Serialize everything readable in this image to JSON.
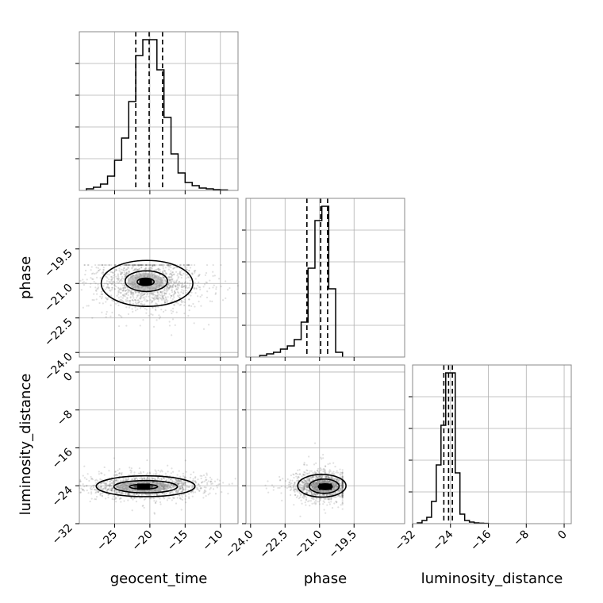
{
  "chart_data": {
    "type": "corner",
    "parameters": [
      "geocent_time",
      "phase",
      "luminosity_distance"
    ],
    "axis_labels": {
      "geocent_time": "geocent_time",
      "phase": "phase",
      "luminosity_distance": "luminosity_distance"
    },
    "ranges": {
      "geocent_time": [
        -30,
        -7.5
      ],
      "phase": [
        -24.2,
        -17.3
      ],
      "luminosity_distance": [
        -32,
        1.5
      ]
    },
    "ticks": {
      "geocent_time": [
        -25,
        -20,
        -15,
        -10
      ],
      "phase": [
        -24.0,
        -22.5,
        -21.0,
        -19.5
      ],
      "luminosity_distance": [
        -32,
        -24,
        -16,
        -8,
        0
      ]
    },
    "tick_labels": {
      "geocent_time": [
        "−25",
        "−20",
        "−15",
        "−10"
      ],
      "phase_x": [
        "−24.0",
        "−22.5",
        "−21.0",
        "−19.5"
      ],
      "phase_y": [
        "−24.0",
        "−22.5",
        "−21.0",
        "−19.5"
      ],
      "luminosity_distance_x": [
        "−32",
        "−24",
        "−16",
        "−8",
        "0"
      ],
      "luminosity_distance_y": [
        "−32",
        "−24",
        "−16",
        "−8",
        "0"
      ]
    },
    "quantiles": {
      "geocent_time": [
        -22.0,
        -20.1,
        -18.2
      ],
      "phase": [
        -21.55,
        -20.95,
        -20.65
      ],
      "luminosity_distance": [
        -25.4,
        -24.4,
        -23.6
      ]
    },
    "histograms": {
      "geocent_time": {
        "edges": [
          -29,
          -28,
          -27,
          -26,
          -25,
          -24,
          -23,
          -22,
          -21,
          -20,
          -19,
          -18,
          -17,
          -16,
          -15,
          -14,
          -13,
          -12,
          -11,
          -10,
          -9
        ],
        "counts": [
          0.01,
          0.02,
          0.04,
          0.09,
          0.19,
          0.33,
          0.56,
          0.85,
          0.95,
          0.95,
          0.76,
          0.46,
          0.23,
          0.11,
          0.05,
          0.03,
          0.015,
          0.01,
          0.005,
          0.003
        ]
      },
      "phase": {
        "edges": [
          -23.6,
          -23.3,
          -23.0,
          -22.7,
          -22.4,
          -22.1,
          -21.8,
          -21.5,
          -21.2,
          -20.9,
          -20.6,
          -20.3,
          -20.0
        ],
        "counts": [
          0.01,
          0.02,
          0.03,
          0.05,
          0.07,
          0.11,
          0.22,
          0.56,
          0.86,
          0.95,
          0.43,
          0.03
        ]
      },
      "luminosity_distance": {
        "edges": [
          -31,
          -30,
          -29,
          -28,
          -27,
          -26,
          -25,
          -24,
          -23,
          -22,
          -21,
          -20,
          -19,
          -18,
          -17,
          -16
        ],
        "counts": [
          0.005,
          0.02,
          0.04,
          0.14,
          0.37,
          0.62,
          0.95,
          0.95,
          0.32,
          0.06,
          0.02,
          0.01,
          0.005,
          0.003,
          0.002
        ]
      }
    },
    "samples_2d": {
      "geocent_time_phase": {
        "center": [
          -20.3,
          -20.95
        ],
        "core_extent": [
          3.0,
          0.6
        ],
        "contours": [
          {
            "center": [
              -20.6,
              -20.93
            ],
            "rx": 1.2,
            "ry": 0.16
          },
          {
            "center": [
              -20.5,
              -20.9
            ],
            "rx": 3.0,
            "ry": 0.45
          },
          {
            "center": [
              -20.4,
              -21.0
            ],
            "rx": 6.5,
            "ry": 1.0
          }
        ]
      },
      "geocent_time_luminosity_distance": {
        "center": [
          -20.5,
          -24.2
        ],
        "contours": [
          {
            "center": [
              -20.9,
              -24.2
            ],
            "rx": 2.0,
            "ry": 0.5
          },
          {
            "center": [
              -20.6,
              -24.2
            ],
            "rx": 4.5,
            "ry": 1.3
          },
          {
            "center": [
              -20.6,
              -24.1
            ],
            "rx": 7.0,
            "ry": 2.2
          }
        ]
      },
      "phase_luminosity_distance": {
        "center": [
          -20.8,
          -24.2
        ],
        "contours": [
          {
            "center": [
              -20.75,
              -24.2
            ],
            "rx": 0.3,
            "ry": 0.6
          },
          {
            "center": [
              -20.8,
              -24.1
            ],
            "rx": 0.65,
            "ry": 1.5
          },
          {
            "center": [
              -20.9,
              -24.0
            ],
            "rx": 1.05,
            "ry": 2.4
          }
        ]
      }
    },
    "grid": true,
    "layout": "3x3 lower-triangular corner plot"
  }
}
